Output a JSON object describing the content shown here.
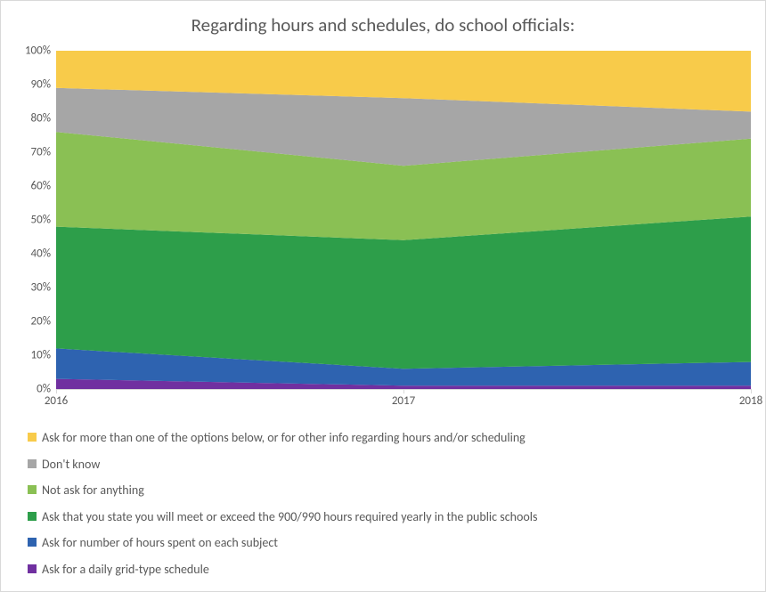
{
  "chart": {
    "type": "stacked-area",
    "title": "Regarding hours and schedules, do school officials:",
    "title_fontsize": 21,
    "title_color": "#595959",
    "background_color": "#ffffff",
    "border_color": "#d9d9d9",
    "grid_color": "#d9d9d9",
    "axis_label_color": "#595959",
    "axis_label_fontsize": 13,
    "legend_fontsize": 14,
    "x": {
      "categories": [
        "2016",
        "2017",
        "2018"
      ]
    },
    "y": {
      "min": 0,
      "max": 100,
      "tick_step": 10,
      "labels": [
        "0%",
        "10%",
        "20%",
        "30%",
        "40%",
        "50%",
        "60%",
        "70%",
        "80%",
        "90%",
        "100%"
      ]
    },
    "series": [
      {
        "key": "grid_schedule",
        "label": "Ask for a daily grid-type schedule",
        "color": "#7030a0",
        "values": [
          3,
          1,
          1
        ]
      },
      {
        "key": "hours_subject",
        "label": "Ask for number of hours spent on each subject",
        "color": "#2e63b0",
        "values": [
          9,
          5,
          7
        ]
      },
      {
        "key": "meet_exceed",
        "label": "Ask that you state you will meet or exceed the 900/990 hours required yearly in the public schools",
        "color": "#2d9e4a",
        "values": [
          36,
          38,
          43
        ]
      },
      {
        "key": "not_ask",
        "label": "Not ask for anything",
        "color": "#8ac054",
        "values": [
          28,
          22,
          23
        ]
      },
      {
        "key": "dont_know",
        "label": "Don't know",
        "color": "#a6a6a6",
        "values": [
          13,
          20,
          8
        ]
      },
      {
        "key": "more_than_one",
        "label": "Ask for more than one of the options below, or for other info regarding hours and/or scheduling",
        "color": "#f8cb4a",
        "values": [
          11,
          14,
          18
        ]
      }
    ]
  }
}
